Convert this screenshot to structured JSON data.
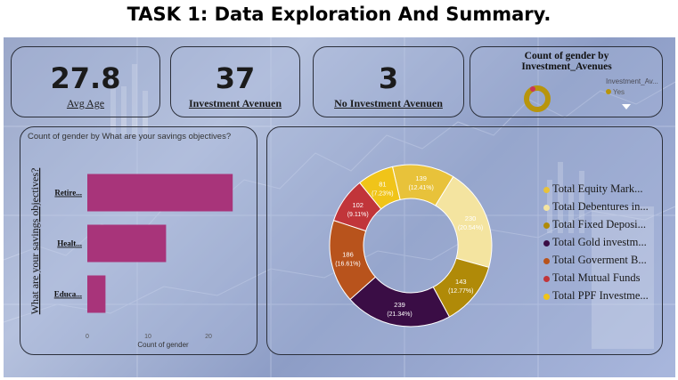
{
  "page_title": "TASK 1: Data Exploration And Summary.",
  "kpis": [
    {
      "value": "27.8",
      "label": "Avg Age"
    },
    {
      "value": "37",
      "label": "Investment Avenuen"
    },
    {
      "value": "3",
      "label": "No Investment Avenuen"
    }
  ],
  "mini_donut": {
    "title": "Count of gender by Investment_Avenues",
    "legend_title": "Investment_Av...",
    "legend_item": "Yes",
    "colors": {
      "ring": "#b8950c",
      "accent": "#c8355a"
    }
  },
  "bar_card": {
    "title": "Count of gender by What are your savings objectives?",
    "ylabel": "What are your savings objectives?",
    "xlabel": "Count of gender",
    "bar_color": "#a8347a"
  },
  "donut_card": {
    "legend": [
      {
        "label": "Total  Equity Mark...",
        "color": "#e8c23a"
      },
      {
        "label": "Total Debentures in...",
        "color": "#f4e4a0"
      },
      {
        "label": "Total Fixed Deposi...",
        "color": "#b08a08"
      },
      {
        "label": "Total Gold investm...",
        "color": "#3a0d45"
      },
      {
        "label": "Total Goverment B...",
        "color": "#b8531c"
      },
      {
        "label": "Total Mutual Funds",
        "color": "#c1353a"
      },
      {
        "label": "Total PPF Investme...",
        "color": "#f0c419"
      }
    ]
  },
  "chart_data": [
    {
      "type": "bar",
      "orientation": "horizontal",
      "title": "Count of gender by What are your savings objectives?",
      "xlabel": "Count of gender",
      "ylabel": "What are your savings objectives?",
      "categories": [
        "Retire...",
        "Healt...",
        "Educa..."
      ],
      "values": [
        24,
        13,
        3
      ],
      "xticks": [
        "0",
        "10",
        "20"
      ],
      "xlim": [
        0,
        25
      ],
      "grid": false
    },
    {
      "type": "pie",
      "style": "donut",
      "slices": [
        {
          "value": 139,
          "label": "139",
          "pct": "(12.41%)",
          "color": "#e8c23a"
        },
        {
          "value": 230,
          "label": "230",
          "pct": "(20.54%)",
          "color": "#f4e4a0"
        },
        {
          "value": 143,
          "label": "143",
          "pct": "(12.77%)",
          "color": "#b08a08"
        },
        {
          "value": 239,
          "label": "239",
          "pct": "(21.34%)",
          "color": "#3a0d45"
        },
        {
          "value": 186,
          "label": "186",
          "pct": "(16.61%)",
          "color": "#b8531c"
        },
        {
          "value": 102,
          "label": "102",
          "pct": "(9.11%)",
          "color": "#c1353a"
        },
        {
          "value": 81,
          "label": "81",
          "pct": "(7.23%)",
          "color": "#f0c419"
        }
      ],
      "legend_position": "right"
    }
  ]
}
